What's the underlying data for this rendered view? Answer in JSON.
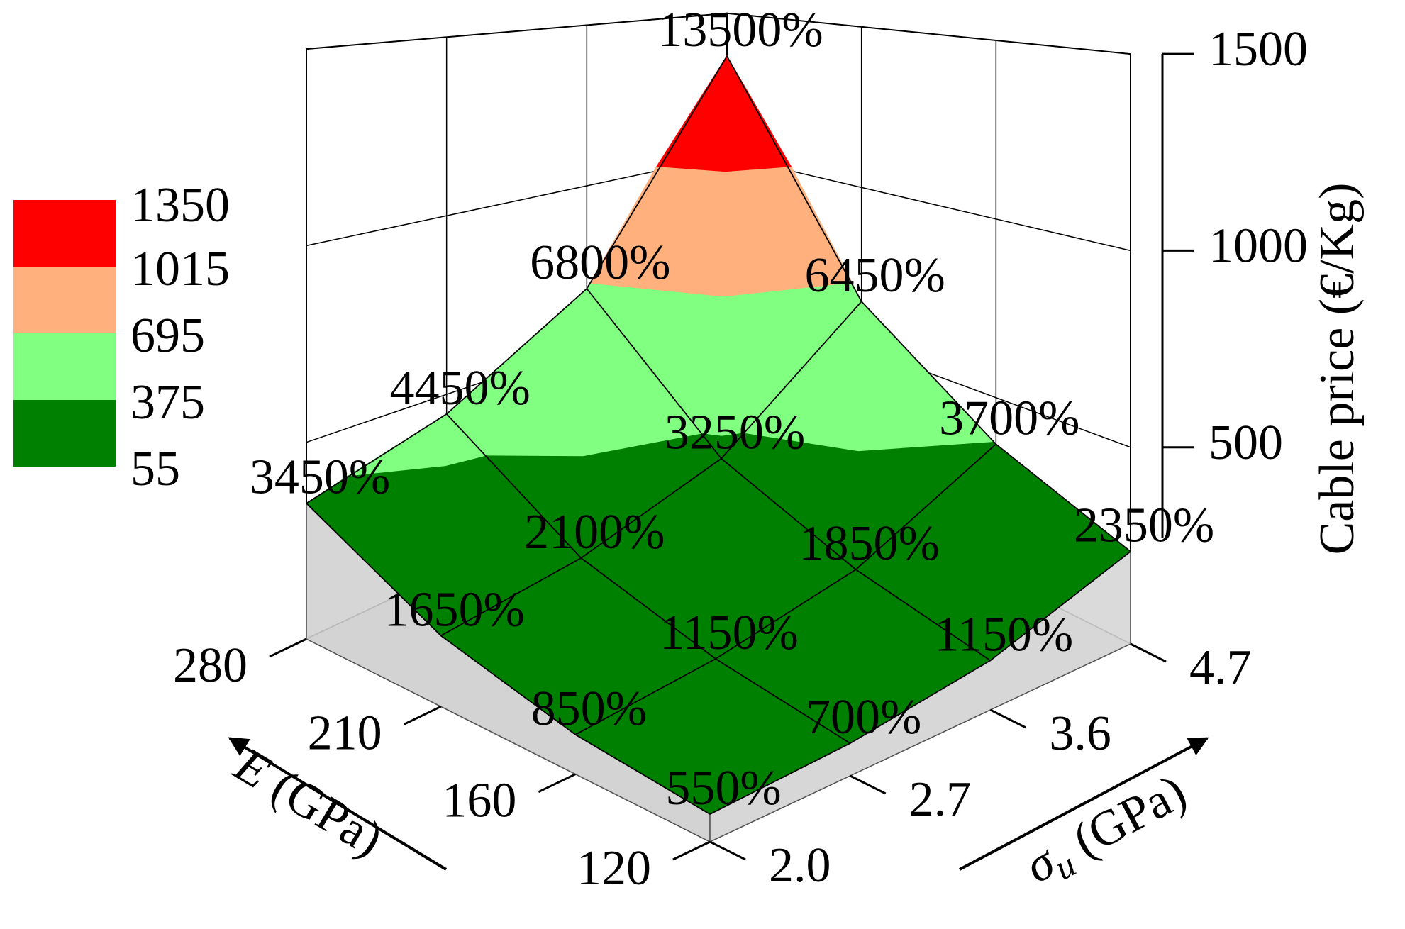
{
  "chart_data": {
    "type": "surface3d",
    "x_label": {
      "symbol": "E",
      "unit": "(GPa)"
    },
    "x_categories": [
      "120",
      "160",
      "210",
      "280"
    ],
    "y_label": {
      "symbol": "σ",
      "subscript": "u",
      "unit": "(GPa)"
    },
    "y_categories": [
      "2.0",
      "2.7",
      "3.6",
      "4.7"
    ],
    "z_label": "Cable price (€/Kg)",
    "zlim": [
      0,
      1500
    ],
    "zticks": [
      500,
      1000,
      1500
    ],
    "values": [
      [
        55,
        70,
        115,
        235
      ],
      [
        85,
        115,
        185,
        370
      ],
      [
        165,
        210,
        325,
        645
      ],
      [
        345,
        445,
        680,
        1350
      ]
    ],
    "point_labels": [
      [
        "550%",
        "700%",
        "1150%",
        "2350%"
      ],
      [
        "850%",
        "1150%",
        "1850%",
        "3700%"
      ],
      [
        "1650%",
        "2100%",
        "3250%",
        "6450%"
      ],
      [
        "3450%",
        "4450%",
        "6800%",
        "13500%"
      ]
    ],
    "levels": [
      55,
      375,
      695,
      1015,
      1350
    ],
    "colors": [
      "#008000",
      "#80ff80",
      "#ffb07c",
      "#ff0000"
    ],
    "grid": true
  }
}
